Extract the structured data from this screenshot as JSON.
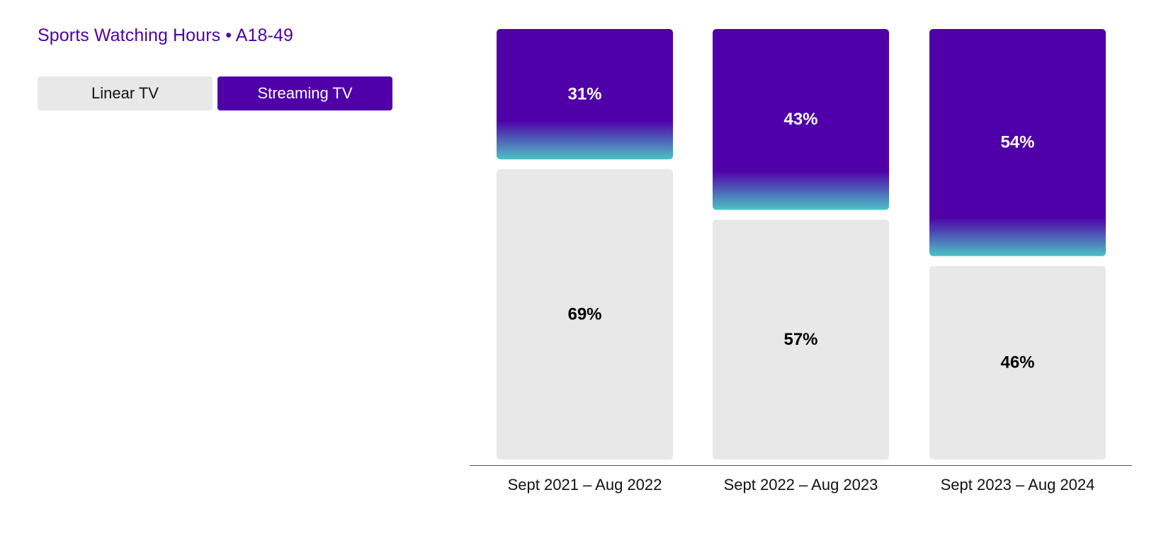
{
  "title": "Sports Watching Hours • A18-49",
  "toggle": {
    "linear_label": "Linear TV",
    "streaming_label": "Streaming TV",
    "selected": "Streaming TV"
  },
  "colors": {
    "accent": "#4f00a8",
    "gradient_bottom": "#4dc3c7",
    "linear_bar": "#e8e8e8",
    "axis": "#555555"
  },
  "chart_data": {
    "type": "bar",
    "stacked": true,
    "categories": [
      "Sept 2021 – Aug 2022",
      "Sept 2022 – Aug 2023",
      "Sept 2023 – Aug 2024"
    ],
    "series": [
      {
        "name": "Streaming TV",
        "values": [
          31,
          43,
          54
        ],
        "labels": [
          "31%",
          "43%",
          "54%"
        ],
        "position": "top"
      },
      {
        "name": "Linear TV",
        "values": [
          69,
          57,
          46
        ],
        "labels": [
          "69%",
          "57%",
          "46%"
        ],
        "position": "bottom"
      }
    ],
    "ylim": [
      0,
      100
    ],
    "grid": false,
    "legend": "none"
  }
}
